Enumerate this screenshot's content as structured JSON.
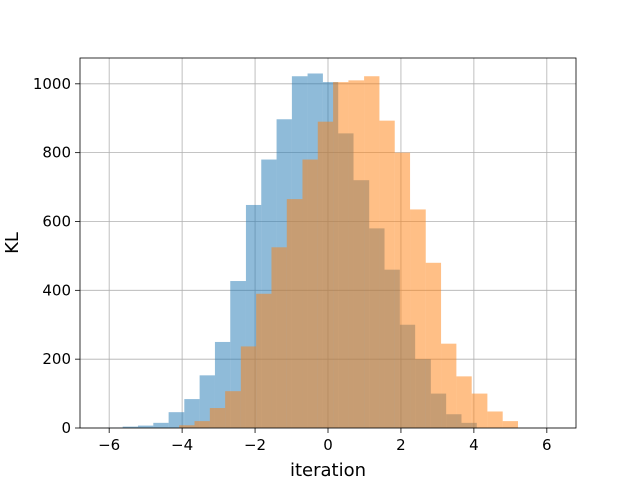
{
  "chart_data": {
    "type": "bar",
    "title": "",
    "xlabel": "iteration",
    "ylabel": "KL",
    "xlim": [
      -6.8,
      6.8
    ],
    "ylim": [
      0,
      1075
    ],
    "xticks": [
      -6,
      -4,
      -2,
      0,
      2,
      4,
      6
    ],
    "xtick_labels": [
      "−6",
      "−4",
      "−2",
      "0",
      "2",
      "4",
      "6"
    ],
    "yticks": [
      0,
      200,
      400,
      600,
      800,
      1000
    ],
    "ytick_labels": [
      "0",
      "200",
      "400",
      "600",
      "800",
      "1000"
    ],
    "grid": true,
    "series": [
      {
        "color": "#1f77b4",
        "opacity": 0.5,
        "bin_edges": [
          -6.06,
          -5.63,
          -5.21,
          -4.79,
          -4.37,
          -3.94,
          -3.52,
          -3.1,
          -2.68,
          -2.25,
          -1.83,
          -1.41,
          -0.99,
          -0.56,
          -0.14,
          0.28,
          0.7,
          1.13,
          1.55,
          1.97,
          2.39,
          2.82,
          3.24,
          3.66,
          4.08
        ],
        "counts": [
          1,
          4,
          7,
          15,
          46,
          84,
          153,
          250,
          427,
          648,
          780,
          897,
          1022,
          1030,
          1005,
          856,
          720,
          580,
          460,
          300,
          200,
          100,
          40,
          15
        ]
      },
      {
        "color": "#ff7f0e",
        "opacity": 0.5,
        "bin_edges": [
          -4.08,
          -3.66,
          -3.24,
          -2.82,
          -2.39,
          -1.97,
          -1.55,
          -1.13,
          -0.7,
          -0.28,
          0.14,
          0.56,
          0.99,
          1.41,
          1.83,
          2.25,
          2.68,
          3.1,
          3.52,
          3.94,
          4.37,
          4.79,
          5.21
        ],
        "counts": [
          8,
          20,
          58,
          107,
          237,
          390,
          525,
          665,
          780,
          890,
          1005,
          1010,
          1022,
          893,
          800,
          635,
          480,
          245,
          150,
          100,
          48,
          20,
          10
        ]
      }
    ]
  }
}
